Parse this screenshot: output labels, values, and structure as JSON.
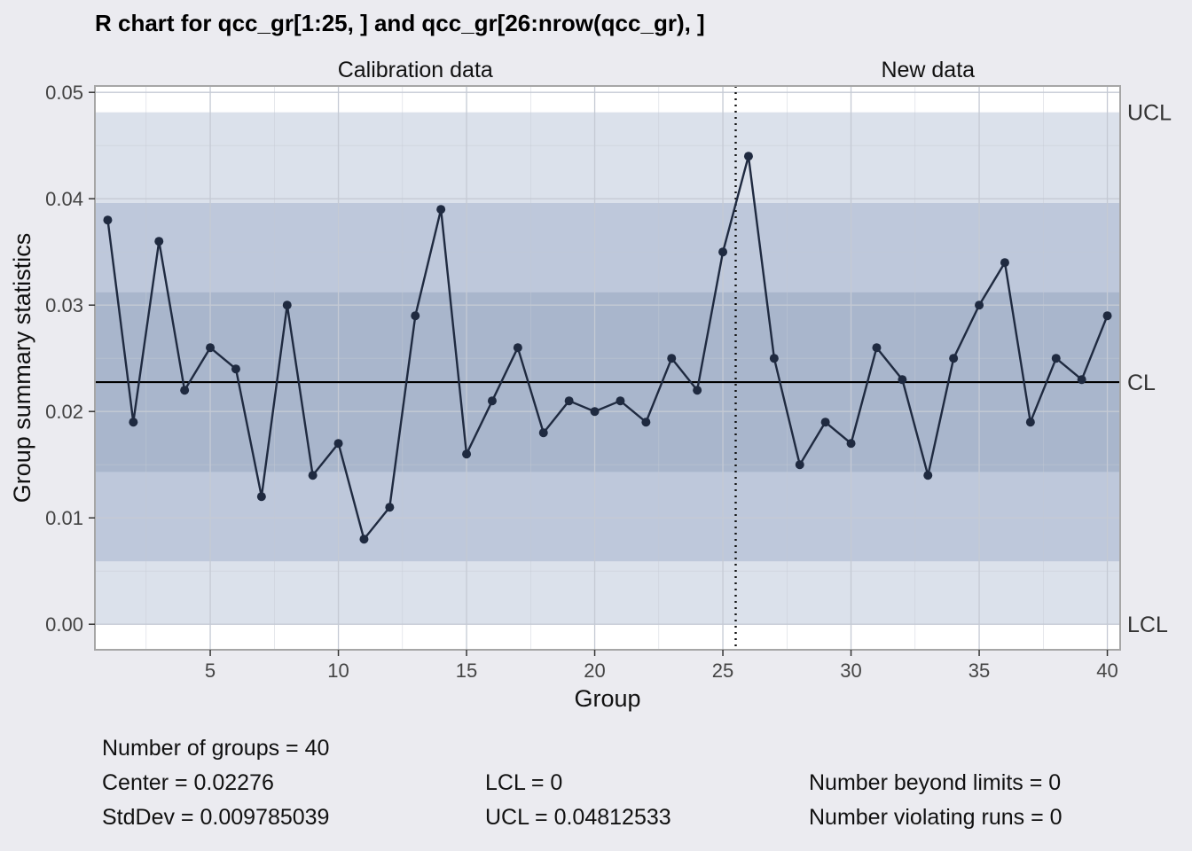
{
  "chart_data": {
    "type": "line",
    "title": "R chart for qcc_gr[1:25, ] and qcc_gr[26:nrow(qcc_gr), ]",
    "xlabel": "Group",
    "ylabel": "Group summary statistics",
    "panels": [
      "Calibration data",
      "New data"
    ],
    "xlim": [
      0.5,
      40.5
    ],
    "ylim": [
      -0.0024,
      0.0506
    ],
    "x_ticks": [
      5,
      10,
      15,
      20,
      25,
      30,
      35,
      40
    ],
    "y_ticks": [
      0.0,
      0.01,
      0.02,
      0.03,
      0.04,
      0.05
    ],
    "y_tick_labels": [
      "0.00",
      "0.01",
      "0.02",
      "0.03",
      "0.04",
      "0.05"
    ],
    "x": [
      1,
      2,
      3,
      4,
      5,
      6,
      7,
      8,
      9,
      10,
      11,
      12,
      13,
      14,
      15,
      16,
      17,
      18,
      19,
      20,
      21,
      22,
      23,
      24,
      25,
      26,
      27,
      28,
      29,
      30,
      31,
      32,
      33,
      34,
      35,
      36,
      37,
      38,
      39,
      40
    ],
    "series": [
      {
        "values": [
          0.038,
          0.019,
          0.036,
          0.022,
          0.026,
          0.024,
          0.012,
          0.03,
          0.014,
          0.017,
          0.008,
          0.011,
          0.029,
          0.039,
          0.016,
          0.021,
          0.026,
          0.018,
          0.021,
          0.02,
          0.021,
          0.019,
          0.025,
          0.022,
          0.035,
          0.044,
          0.025,
          0.015,
          0.019,
          0.017,
          0.026,
          0.023,
          0.014,
          0.025,
          0.03,
          0.034,
          0.019,
          0.025,
          0.023,
          0.029
        ]
      }
    ],
    "calibration_groups": 25,
    "center": 0.02276,
    "lcl": 0,
    "ucl": 0.04812533,
    "sigma_bands": {
      "one_sigma": [
        0.01432,
        0.0312
      ],
      "two_sigma": [
        0.00592,
        0.0396
      ]
    },
    "limit_labels": [
      "UCL",
      "CL",
      "LCL"
    ],
    "colors": {
      "background": "#ebebf0",
      "band_outer": "#dbe1eb",
      "band_middle": "#bec8db",
      "band_inner": "#a9b6cc",
      "line": "#1f2a40",
      "center_line": "#000000",
      "grid": "#c5cad4"
    },
    "grid": true
  },
  "summary": {
    "groups": "Number of groups = 40",
    "center": "Center = 0.02276",
    "stddev": "StdDev = 0.009785039",
    "lcl": "LCL = 0",
    "ucl": "UCL = 0.04812533",
    "beyond": "Number beyond limits = 0",
    "runs": "Number violating runs = 0"
  }
}
